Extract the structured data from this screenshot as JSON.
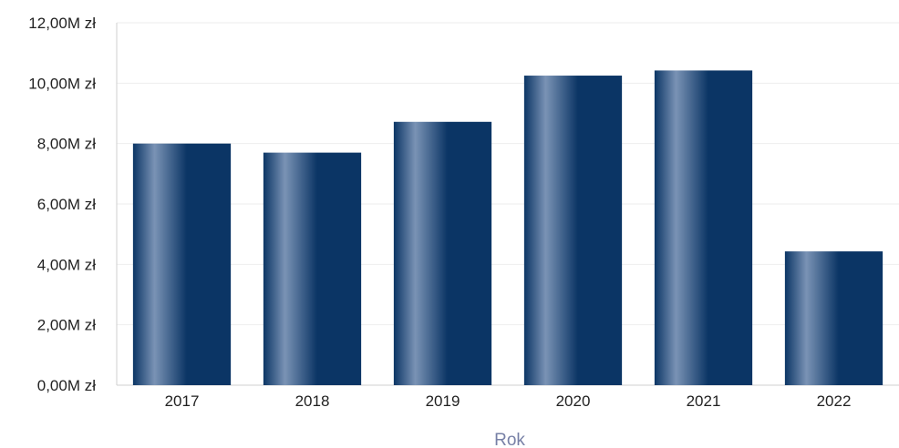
{
  "chart_data": {
    "type": "bar",
    "title": "",
    "xlabel": "Rok",
    "ylabel": "",
    "categories": [
      "2017",
      "2018",
      "2019",
      "2020",
      "2021",
      "2022"
    ],
    "values": [
      8.0,
      7.7,
      8.72,
      10.25,
      10.42,
      4.43
    ],
    "value_unit": "M zł",
    "ylim": [
      0,
      12
    ],
    "y_ticks": [
      0,
      2,
      4,
      6,
      8,
      10,
      12
    ],
    "y_tick_labels": [
      "0,00M zł",
      "2,00M zł",
      "4,00M zł",
      "6,00M zł",
      "8,00M zł",
      "10,00M zł",
      "12,00M zł"
    ],
    "grid": true,
    "legend": "none",
    "colors": {
      "bar_dark": "#0b3565",
      "bar_light": "#7a93b5",
      "axis_title": "#7780a6",
      "gridline": "#eeeeee",
      "axis_line": "#cfcfcf"
    }
  }
}
